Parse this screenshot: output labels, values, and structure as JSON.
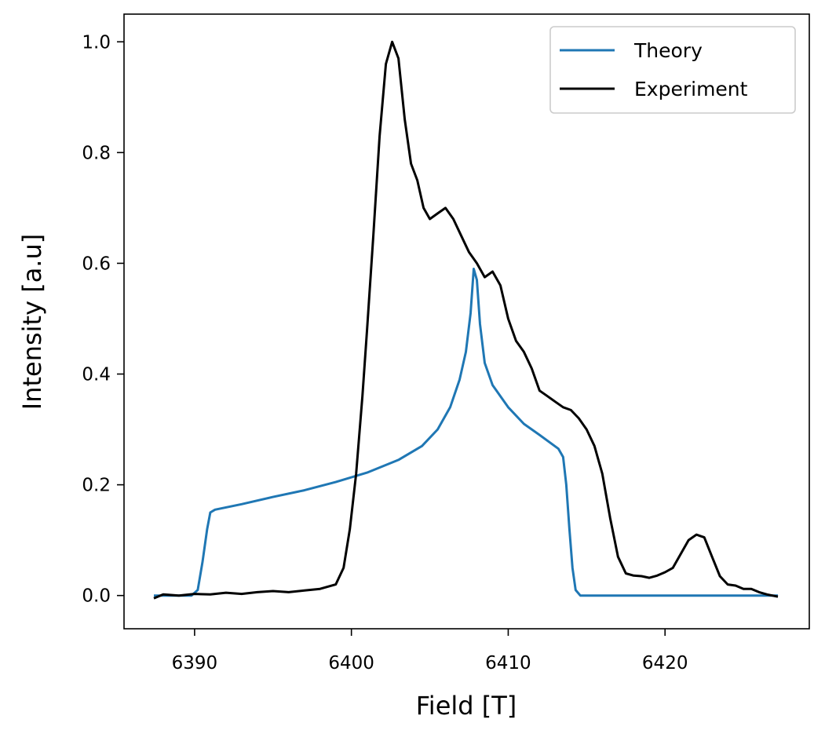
{
  "chart_data": {
    "type": "line",
    "title": "",
    "xlabel": "Field [T]",
    "ylabel": "Intensity [a.u]",
    "xlim": [
      6385.5,
      6429.2
    ],
    "ylim": [
      -0.06,
      1.05
    ],
    "xticks": [
      6390,
      6400,
      6410,
      6420
    ],
    "yticks": [
      0.0,
      0.2,
      0.4,
      0.6,
      0.8,
      1.0
    ],
    "xtick_labels": [
      "6390",
      "6400",
      "6410",
      "6420"
    ],
    "ytick_labels": [
      "0.0",
      "0.2",
      "0.4",
      "0.6",
      "0.8",
      "1.0"
    ],
    "grid": false,
    "legend_position": "top-right",
    "series": [
      {
        "name": "Theory",
        "color": "#1f77b4",
        "points": [
          [
            6387.4,
            0.0
          ],
          [
            6389.8,
            0.0
          ],
          [
            6390.2,
            0.01
          ],
          [
            6390.5,
            0.06
          ],
          [
            6390.8,
            0.12
          ],
          [
            6391.0,
            0.15
          ],
          [
            6391.3,
            0.155
          ],
          [
            6393.0,
            0.165
          ],
          [
            6395.0,
            0.178
          ],
          [
            6397.0,
            0.19
          ],
          [
            6399.0,
            0.205
          ],
          [
            6401.0,
            0.222
          ],
          [
            6403.0,
            0.245
          ],
          [
            6404.5,
            0.27
          ],
          [
            6405.5,
            0.3
          ],
          [
            6406.3,
            0.34
          ],
          [
            6406.9,
            0.39
          ],
          [
            6407.3,
            0.44
          ],
          [
            6407.6,
            0.51
          ],
          [
            6407.8,
            0.59
          ],
          [
            6408.0,
            0.57
          ],
          [
            6408.2,
            0.49
          ],
          [
            6408.5,
            0.42
          ],
          [
            6409.0,
            0.38
          ],
          [
            6410.0,
            0.34
          ],
          [
            6411.0,
            0.31
          ],
          [
            6412.0,
            0.29
          ],
          [
            6413.2,
            0.265
          ],
          [
            6413.5,
            0.25
          ],
          [
            6413.7,
            0.2
          ],
          [
            6413.9,
            0.12
          ],
          [
            6414.1,
            0.05
          ],
          [
            6414.3,
            0.01
          ],
          [
            6414.6,
            0.0
          ],
          [
            6427.2,
            0.0
          ]
        ]
      },
      {
        "name": "Experiment",
        "color": "#000000",
        "points": [
          [
            6387.4,
            -0.005
          ],
          [
            6388.0,
            0.002
          ],
          [
            6389.0,
            0.0
          ],
          [
            6390.0,
            0.003
          ],
          [
            6391.0,
            0.002
          ],
          [
            6392.0,
            0.005
          ],
          [
            6393.0,
            0.003
          ],
          [
            6394.0,
            0.006
          ],
          [
            6395.0,
            0.008
          ],
          [
            6396.0,
            0.006
          ],
          [
            6397.0,
            0.009
          ],
          [
            6398.0,
            0.012
          ],
          [
            6399.0,
            0.02
          ],
          [
            6399.5,
            0.05
          ],
          [
            6399.9,
            0.12
          ],
          [
            6400.3,
            0.22
          ],
          [
            6400.7,
            0.36
          ],
          [
            6401.0,
            0.48
          ],
          [
            6401.4,
            0.65
          ],
          [
            6401.8,
            0.83
          ],
          [
            6402.2,
            0.96
          ],
          [
            6402.6,
            1.0
          ],
          [
            6403.0,
            0.97
          ],
          [
            6403.4,
            0.86
          ],
          [
            6403.8,
            0.78
          ],
          [
            6404.2,
            0.75
          ],
          [
            6404.6,
            0.7
          ],
          [
            6405.0,
            0.68
          ],
          [
            6405.5,
            0.69
          ],
          [
            6406.0,
            0.7
          ],
          [
            6406.5,
            0.68
          ],
          [
            6407.0,
            0.65
          ],
          [
            6407.5,
            0.62
          ],
          [
            6408.0,
            0.6
          ],
          [
            6408.5,
            0.575
          ],
          [
            6409.0,
            0.585
          ],
          [
            6409.5,
            0.56
          ],
          [
            6410.0,
            0.5
          ],
          [
            6410.5,
            0.46
          ],
          [
            6411.0,
            0.44
          ],
          [
            6411.5,
            0.41
          ],
          [
            6412.0,
            0.37
          ],
          [
            6412.5,
            0.36
          ],
          [
            6413.0,
            0.35
          ],
          [
            6413.5,
            0.34
          ],
          [
            6414.0,
            0.335
          ],
          [
            6414.5,
            0.32
          ],
          [
            6415.0,
            0.3
          ],
          [
            6415.5,
            0.27
          ],
          [
            6416.0,
            0.22
          ],
          [
            6416.5,
            0.14
          ],
          [
            6417.0,
            0.07
          ],
          [
            6417.5,
            0.04
          ],
          [
            6418.0,
            0.036
          ],
          [
            6418.5,
            0.035
          ],
          [
            6419.0,
            0.032
          ],
          [
            6419.5,
            0.036
          ],
          [
            6420.0,
            0.042
          ],
          [
            6420.5,
            0.05
          ],
          [
            6421.0,
            0.075
          ],
          [
            6421.5,
            0.1
          ],
          [
            6422.0,
            0.11
          ],
          [
            6422.5,
            0.105
          ],
          [
            6423.0,
            0.07
          ],
          [
            6423.5,
            0.035
          ],
          [
            6424.0,
            0.02
          ],
          [
            6424.5,
            0.018
          ],
          [
            6425.0,
            0.012
          ],
          [
            6425.5,
            0.012
          ],
          [
            6426.0,
            0.006
          ],
          [
            6426.5,
            0.002
          ],
          [
            6427.2,
            -0.002
          ]
        ]
      }
    ]
  }
}
